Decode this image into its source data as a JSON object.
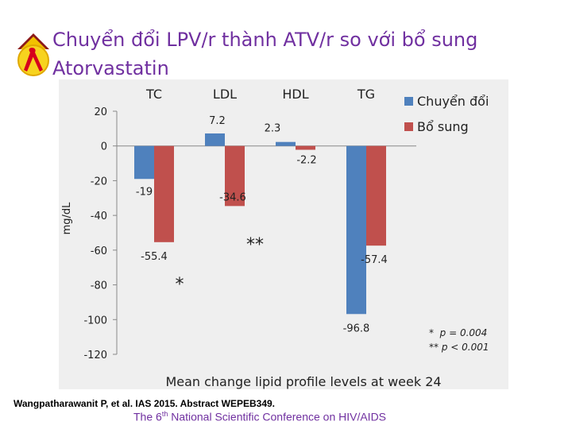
{
  "header": {
    "title": "Chuyển đổi LPV/r thành ATV/r so với bổ sung Atorvastatin"
  },
  "footer": {
    "citation": "Wangpatharawanit P, et al.  IAS 2015.  Abstract WEPEB349.",
    "conference_pre": "The 6",
    "conference_sup": "th",
    "conference_post": " National Scientific Conference on HIV/AIDS"
  },
  "footnotes": [
    {
      "marker": "*",
      "text": "p = 0.004"
    },
    {
      "marker": "**",
      "text": "p < 0.001"
    }
  ],
  "chart_data": {
    "type": "bar",
    "categories": [
      "TC",
      "LDL",
      "HDL",
      "TG"
    ],
    "series": [
      {
        "name": "Chuyển đổi",
        "color": "#4f81bd",
        "values": [
          -19,
          7.2,
          2.3,
          -96.8
        ]
      },
      {
        "name": "Bổ sung",
        "color": "#c0504d",
        "values": [
          -55.4,
          -34.6,
          -2.2,
          -57.4
        ]
      }
    ],
    "ylabel": "mg/dL",
    "xlabel": "Mean change lipid profile levels at week 24",
    "ylim": [
      -120,
      20
    ],
    "yticks": [
      20,
      0,
      -20,
      -40,
      -60,
      -80,
      -100,
      -120
    ],
    "significance": [
      {
        "category": "TC",
        "marker": "*"
      },
      {
        "category": "LDL",
        "marker": "**"
      }
    ],
    "legend_position": "top-right"
  }
}
